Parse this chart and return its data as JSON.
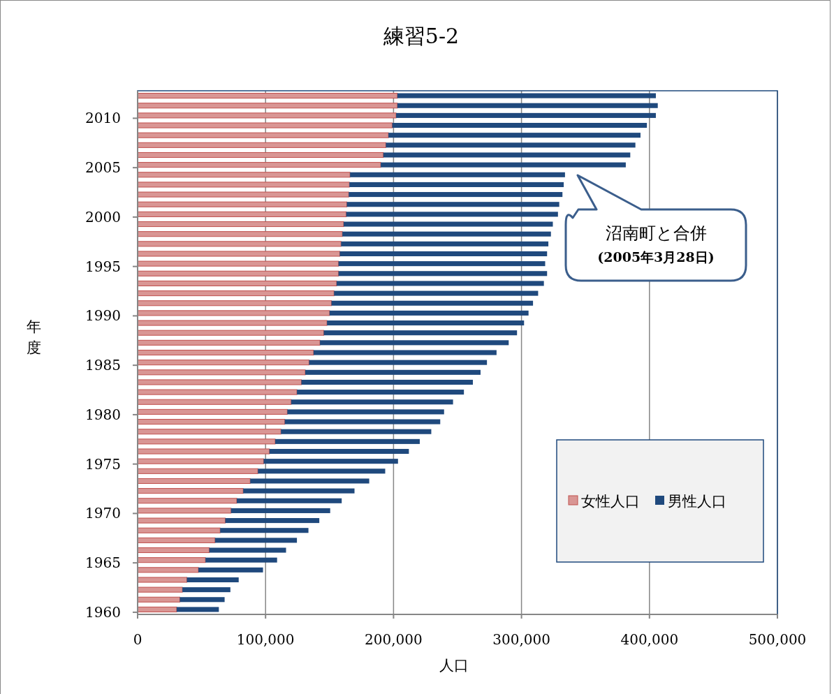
{
  "chart_data": {
    "type": "bar",
    "orientation": "horizontal",
    "stacked": true,
    "title": "練習5-2",
    "xlabel": "人口",
    "ylabel": "年度",
    "categories": [
      null,
      null,
      "2010",
      null,
      null,
      null,
      null,
      "2005",
      null,
      null,
      null,
      null,
      "2000",
      null,
      null,
      null,
      null,
      "1995",
      null,
      null,
      null,
      null,
      "1990",
      null,
      null,
      null,
      null,
      "1985",
      null,
      null,
      null,
      null,
      "1980",
      null,
      null,
      null,
      null,
      "1975",
      null,
      null,
      null,
      null,
      "1970",
      null,
      null,
      null,
      null,
      "1965",
      null,
      null,
      null,
      null,
      "1960"
    ],
    "series": [
      {
        "name": "女性人口",
        "color": "#d99694",
        "values": [
          203000,
          203000,
          202000,
          199000,
          196000,
          194000,
          192000,
          190000,
          166000,
          165500,
          165000,
          163500,
          163000,
          161000,
          160000,
          159000,
          158000,
          157000,
          157000,
          155500,
          153500,
          151500,
          150000,
          148000,
          145500,
          142500,
          137500,
          134000,
          131000,
          128000,
          124500,
          120000,
          117000,
          115000,
          112000,
          107500,
          103000,
          98500,
          94000,
          88000,
          82500,
          77500,
          73000,
          68500,
          64500,
          60500,
          56000,
          53000,
          47500,
          38500,
          35000,
          33000,
          30500
        ]
      },
      {
        "name": "男性人口",
        "color": "#1f497d",
        "values": [
          202000,
          203500,
          203000,
          199000,
          197000,
          195000,
          193000,
          191500,
          168000,
          167500,
          167000,
          166000,
          165500,
          163500,
          163000,
          162000,
          162000,
          161500,
          163000,
          162000,
          159500,
          157500,
          155500,
          154000,
          151000,
          147500,
          143000,
          139000,
          137000,
          134000,
          130500,
          126500,
          122500,
          121500,
          117500,
          113000,
          109000,
          105000,
          99500,
          93000,
          87000,
          82000,
          77500,
          73500,
          69000,
          64000,
          60000,
          56000,
          50500,
          40500,
          37500,
          35000,
          33000
        ]
      }
    ],
    "xlim": [
      0,
      500000
    ],
    "xticks": [
      0,
      {
        "value": 100000,
        "label": "100,000"
      },
      {
        "value": 200000,
        "label": "200,000"
      },
      {
        "value": 300000,
        "label": "300,000"
      },
      {
        "value": 400000,
        "label": "400,000"
      },
      {
        "value": 500000,
        "label": "500,000"
      }
    ],
    "grid": "x",
    "legend": "bottom right",
    "annotations": [
      "沼南町と合併\n(2005年3月28日)"
    ]
  }
}
